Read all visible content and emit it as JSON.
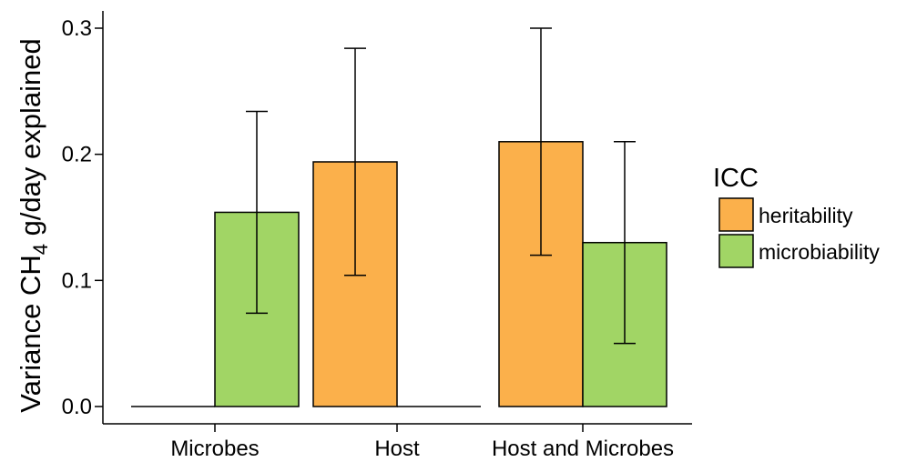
{
  "chart_data": {
    "type": "bar",
    "categories": [
      "Microbes",
      "Host",
      "Host and Microbes"
    ],
    "ylabel_main": "Variance CH",
    "ylabel_sub": "4",
    "ylabel_rest": " g/day explained",
    "xlabel": "",
    "ylim": [
      0,
      0.31
    ],
    "yticks": [
      0.0,
      0.1,
      0.2,
      0.3
    ],
    "ytick_labels": [
      "0.0",
      "0.1",
      "0.2",
      "0.3"
    ],
    "grid": false,
    "legend": {
      "title": "ICC",
      "position": "right"
    },
    "series": [
      {
        "name": "heritability",
        "color": "#FBB04B",
        "values": [
          0.0,
          0.194,
          0.21
        ],
        "err_low": [
          null,
          0.104,
          0.12
        ],
        "err_high": [
          null,
          0.284,
          0.3
        ]
      },
      {
        "name": "microbiability",
        "color": "#A1D565",
        "values": [
          0.154,
          0.0,
          0.13
        ],
        "err_low": [
          0.074,
          null,
          0.05
        ],
        "err_high": [
          0.234,
          null,
          0.21
        ]
      }
    ]
  }
}
